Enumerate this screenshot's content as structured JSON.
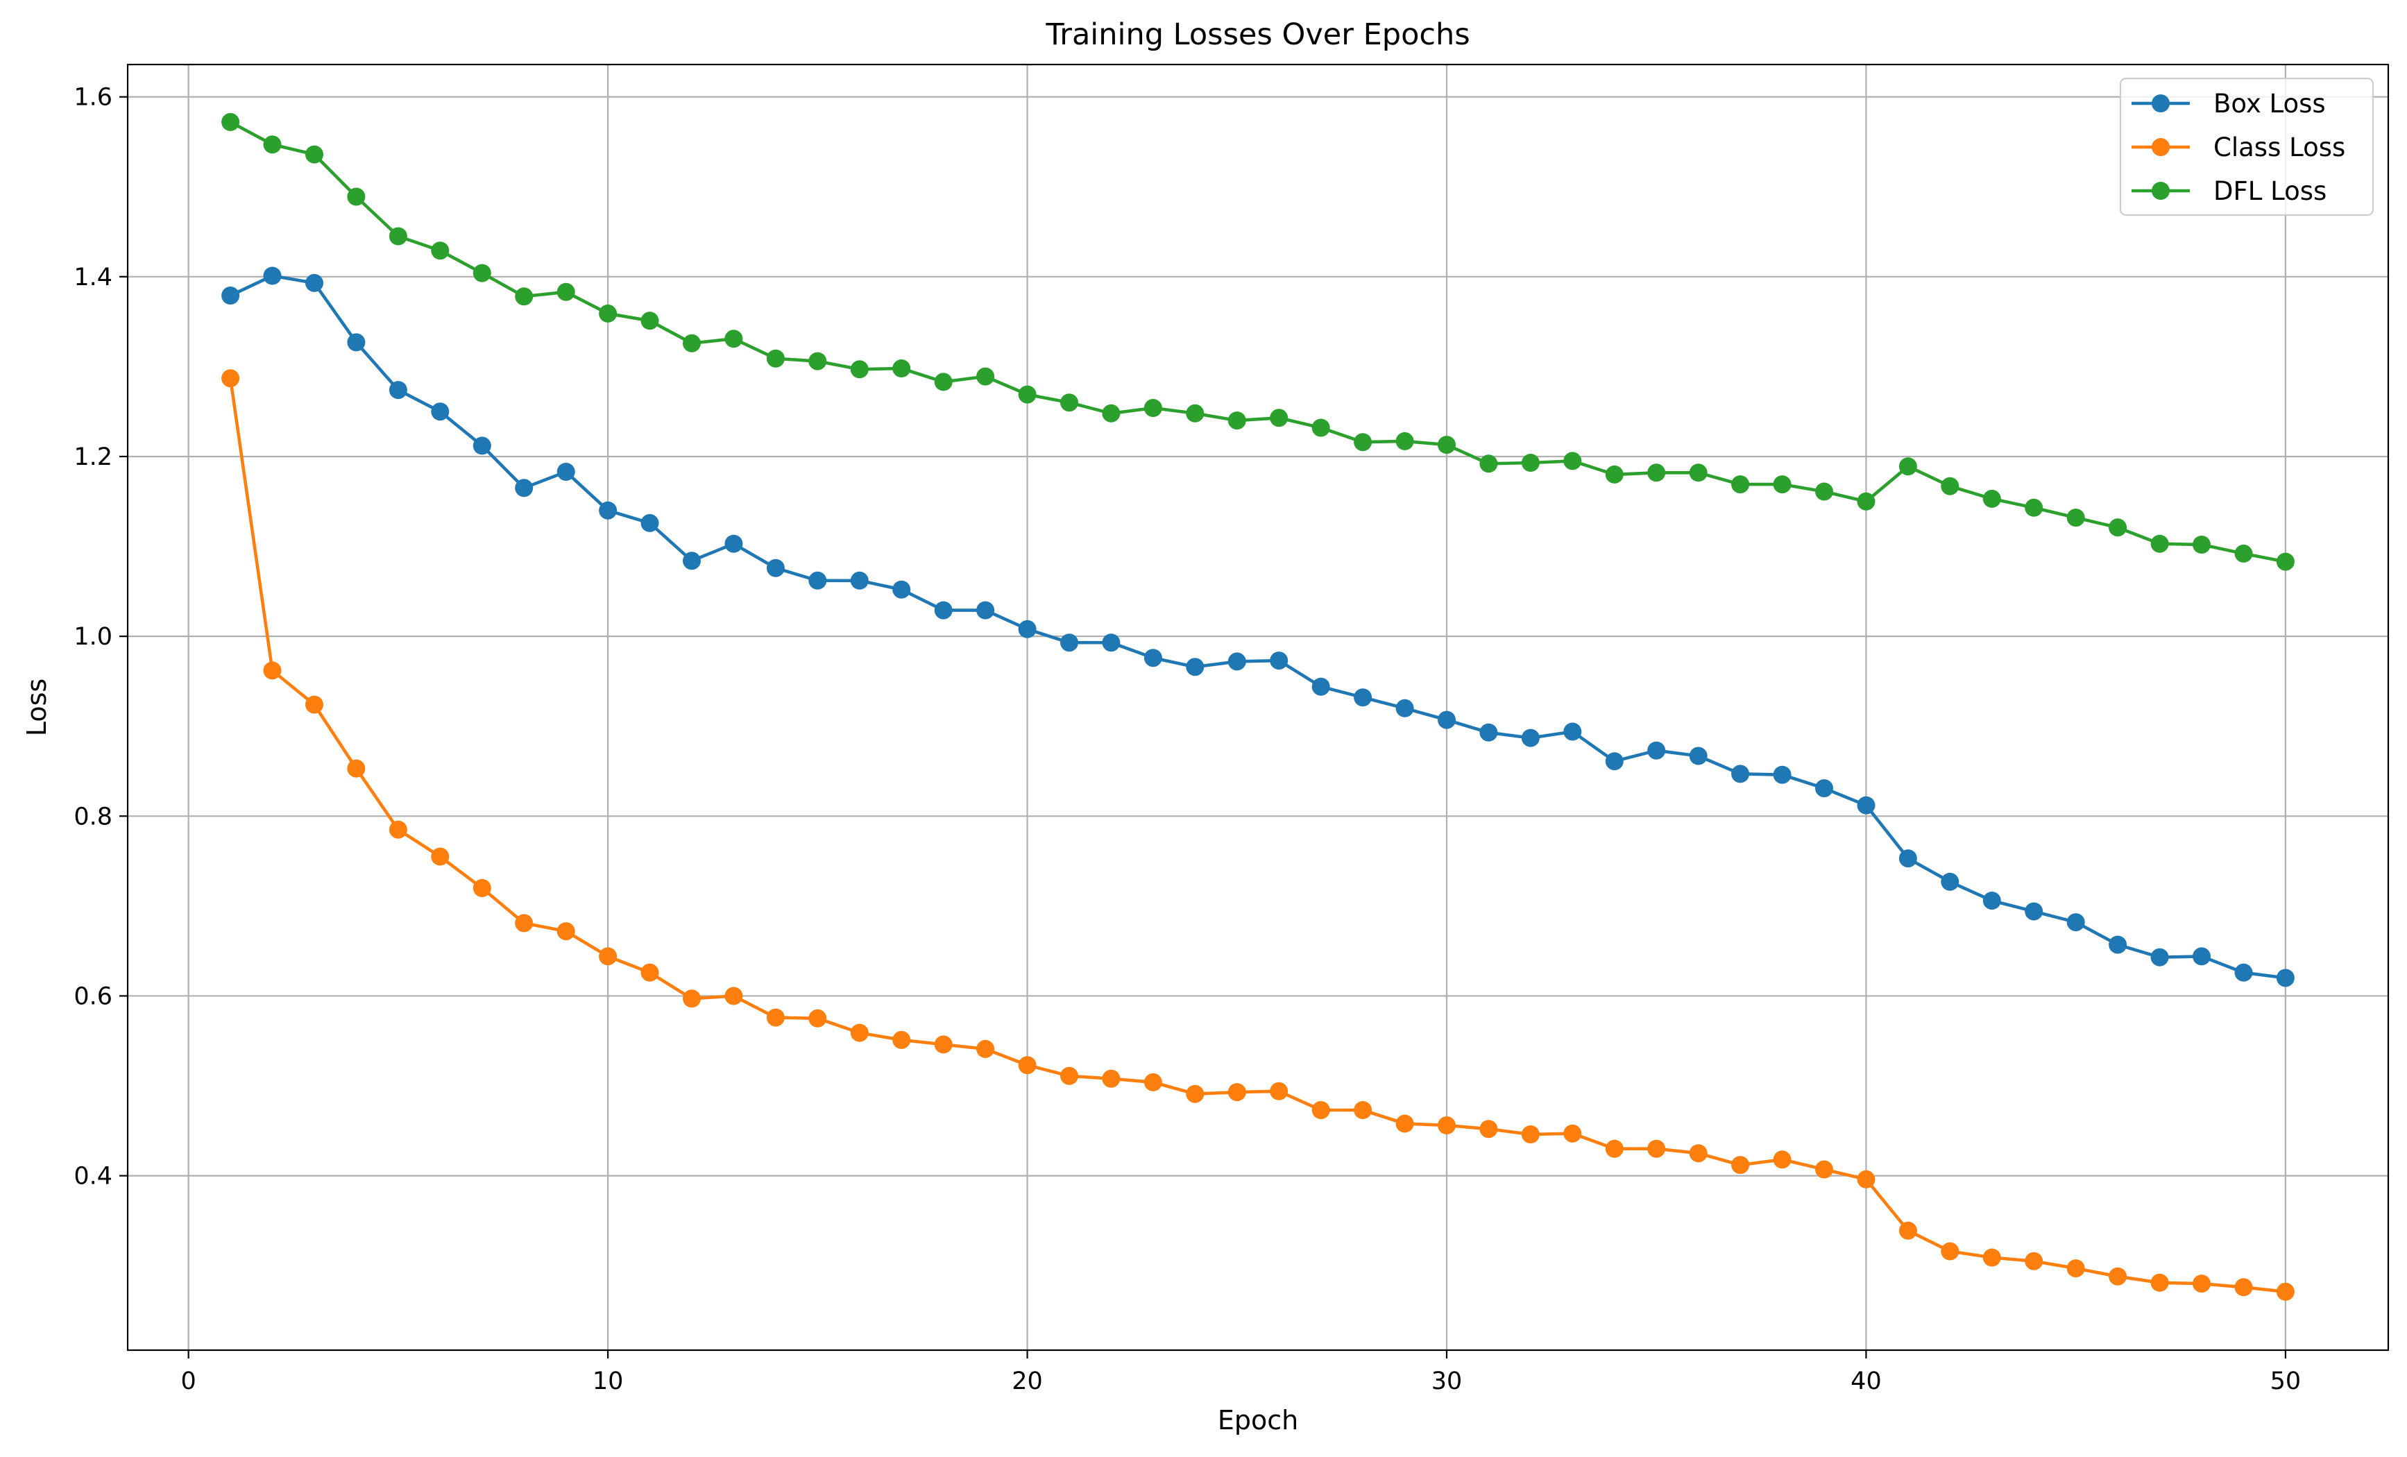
{
  "chart_data": {
    "type": "line",
    "title": "Training Losses Over Epochs",
    "xlabel": "Epoch",
    "ylabel": "Loss",
    "xlim": [
      -1.45,
      52.45
    ],
    "ylim": [
      0.206,
      1.636
    ],
    "xticks": [
      0,
      10,
      20,
      30,
      40,
      50
    ],
    "xtick_labels": [
      "0",
      "10",
      "20",
      "30",
      "40",
      "50"
    ],
    "yticks": [
      0.4,
      0.6,
      0.8,
      1.0,
      1.2,
      1.4,
      1.6
    ],
    "ytick_labels": [
      "0.4",
      "0.6",
      "0.8",
      "1.0",
      "1.2",
      "1.4",
      "1.6"
    ],
    "grid": true,
    "legend_position": "top-right",
    "x": [
      1,
      2,
      3,
      4,
      5,
      6,
      7,
      8,
      9,
      10,
      11,
      12,
      13,
      14,
      15,
      16,
      17,
      18,
      19,
      20,
      21,
      22,
      23,
      24,
      25,
      26,
      27,
      28,
      29,
      30,
      31,
      32,
      33,
      34,
      35,
      36,
      37,
      38,
      39,
      40,
      41,
      42,
      43,
      44,
      45,
      46,
      47,
      48,
      49,
      50
    ],
    "series": [
      {
        "name": "Box Loss",
        "color": "#1f77b4",
        "marker": "circle",
        "values": [
          1.379,
          1.401,
          1.393,
          1.327,
          1.274,
          1.25,
          1.212,
          1.165,
          1.183,
          1.14,
          1.126,
          1.084,
          1.103,
          1.076,
          1.062,
          1.062,
          1.052,
          1.029,
          1.029,
          1.008,
          0.993,
          0.993,
          0.976,
          0.966,
          0.972,
          0.973,
          0.944,
          0.932,
          0.92,
          0.907,
          0.893,
          0.887,
          0.894,
          0.861,
          0.873,
          0.867,
          0.847,
          0.846,
          0.831,
          0.812,
          0.753,
          0.727,
          0.706,
          0.694,
          0.682,
          0.657,
          0.643,
          0.644,
          0.626,
          0.62
        ]
      },
      {
        "name": "Class Loss",
        "color": "#ff7f0e",
        "marker": "circle",
        "values": [
          1.287,
          0.962,
          0.924,
          0.853,
          0.785,
          0.755,
          0.72,
          0.681,
          0.672,
          0.644,
          0.626,
          0.597,
          0.6,
          0.576,
          0.575,
          0.559,
          0.551,
          0.546,
          0.541,
          0.523,
          0.511,
          0.508,
          0.504,
          0.491,
          0.493,
          0.494,
          0.473,
          0.473,
          0.458,
          0.456,
          0.452,
          0.446,
          0.447,
          0.43,
          0.43,
          0.425,
          0.412,
          0.418,
          0.407,
          0.396,
          0.339,
          0.316,
          0.309,
          0.305,
          0.297,
          0.288,
          0.281,
          0.28,
          0.276,
          0.271
        ]
      },
      {
        "name": "DFL Loss",
        "color": "#2ca02c",
        "marker": "circle",
        "values": [
          1.572,
          1.547,
          1.536,
          1.489,
          1.445,
          1.429,
          1.404,
          1.378,
          1.383,
          1.359,
          1.351,
          1.326,
          1.331,
          1.309,
          1.306,
          1.297,
          1.298,
          1.283,
          1.289,
          1.269,
          1.26,
          1.248,
          1.254,
          1.248,
          1.24,
          1.243,
          1.232,
          1.216,
          1.217,
          1.213,
          1.192,
          1.193,
          1.195,
          1.18,
          1.182,
          1.182,
          1.169,
          1.169,
          1.161,
          1.15,
          1.189,
          1.167,
          1.153,
          1.143,
          1.132,
          1.121,
          1.103,
          1.102,
          1.092,
          1.083
        ]
      }
    ]
  }
}
